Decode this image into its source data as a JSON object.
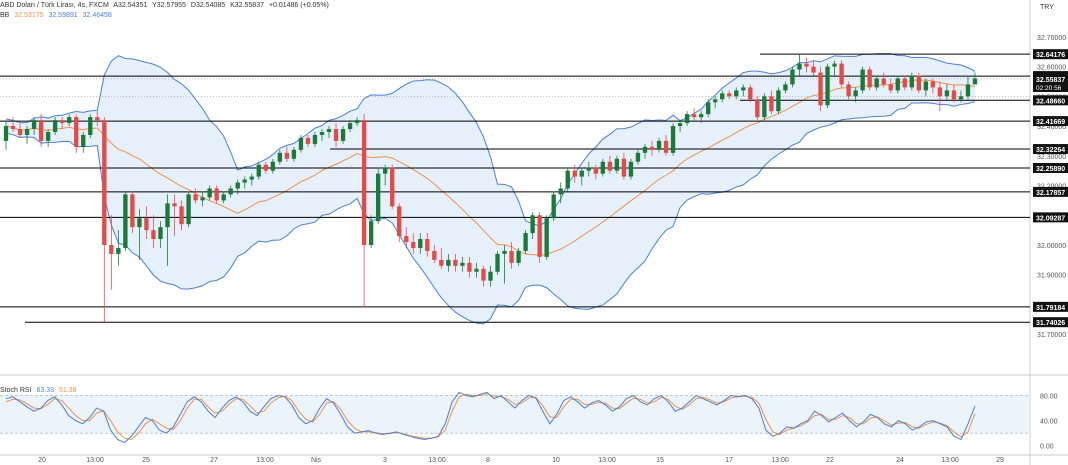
{
  "header": {
    "symbol_line": "ABD Doları / Türk Lirası, 4s, FXCM",
    "ohlc": {
      "o": "A32.54351",
      "h": "Y32.57955",
      "l": "D32.54085",
      "c": "K32.55837",
      "chg": "+0.01486 (+0.05%)"
    },
    "indicator_label": "BB",
    "indicator_values": [
      "32.53175",
      "32.59891",
      "32.46458"
    ],
    "currency": "TRY"
  },
  "chart_data": [
    {
      "type": "candlestick",
      "title": "ABD Doları / Türk Lirası, 4s, FXCM",
      "ylim": [
        31.64,
        32.75
      ],
      "y_ticks": [
        "32.70000",
        "32.60000",
        "32.50000",
        "32.40000",
        "32.30000",
        "32.20000",
        "32.10000",
        "32.00000",
        "31.90000",
        "31.80000",
        "31.70000"
      ],
      "y_tick_values": [
        32.7,
        32.6,
        32.5,
        32.4,
        32.3,
        32.2,
        32.1,
        32.0,
        31.9,
        31.8,
        31.7
      ],
      "x_labels": [
        "20",
        "13:00",
        "25",
        "27",
        "13:00",
        "Nis",
        "3",
        "13:00",
        "8",
        "10",
        "13:00",
        "15",
        "17",
        "13:00",
        "22",
        "24",
        "13:00",
        "29"
      ],
      "horizontal_levels": [
        32.64176,
        32.56802,
        32.4866,
        32.41669,
        32.32264,
        32.2589,
        32.17857,
        32.09287,
        31.79184,
        31.74026
      ],
      "level_labels": [
        "32.64176",
        "32.56802",
        "32.48660",
        "32.41669",
        "32.32264",
        "32.25890",
        "32.17857",
        "32.09287",
        "31.79184",
        "31.74026"
      ],
      "current_price_label": "32.55837",
      "countdown_label": "02:20:56",
      "candles": [
        [
          32.35,
          32.42,
          32.32,
          32.4
        ],
        [
          32.4,
          32.43,
          32.38,
          32.39
        ],
        [
          32.39,
          32.41,
          32.36,
          32.37
        ],
        [
          32.37,
          32.4,
          32.34,
          32.39
        ],
        [
          32.39,
          32.43,
          32.37,
          32.42
        ],
        [
          32.42,
          32.44,
          32.33,
          32.35
        ],
        [
          32.35,
          32.39,
          32.33,
          32.38
        ],
        [
          32.38,
          32.43,
          32.37,
          32.42
        ],
        [
          32.42,
          32.43,
          32.39,
          32.41
        ],
        [
          32.41,
          32.44,
          32.4,
          32.43
        ],
        [
          32.43,
          32.44,
          32.31,
          32.33
        ],
        [
          32.33,
          32.38,
          32.31,
          32.37
        ],
        [
          32.37,
          32.44,
          32.36,
          32.43
        ],
        [
          32.43,
          32.45,
          32.4,
          32.42
        ],
        [
          32.42,
          32.43,
          31.74,
          32.0
        ],
        [
          32.0,
          32.1,
          31.85,
          31.97
        ],
        [
          31.97,
          32.05,
          31.93,
          31.99
        ],
        [
          31.99,
          32.18,
          31.98,
          32.17
        ],
        [
          32.17,
          32.18,
          32.04,
          32.06
        ],
        [
          32.06,
          32.12,
          31.95,
          32.09
        ],
        [
          32.09,
          32.13,
          32.02,
          32.05
        ],
        [
          32.05,
          32.1,
          31.99,
          32.02
        ],
        [
          32.02,
          32.08,
          31.99,
          32.06
        ],
        [
          32.06,
          32.17,
          31.93,
          32.14
        ],
        [
          32.14,
          32.17,
          32.03,
          32.13
        ],
        [
          32.13,
          32.15,
          32.05,
          32.07
        ],
        [
          32.07,
          32.18,
          32.06,
          32.17
        ],
        [
          32.17,
          32.19,
          32.14,
          32.15
        ],
        [
          32.15,
          32.18,
          32.13,
          32.16
        ],
        [
          32.16,
          32.2,
          32.15,
          32.19
        ],
        [
          32.19,
          32.2,
          32.14,
          32.15
        ],
        [
          32.15,
          32.18,
          32.14,
          32.17
        ],
        [
          32.17,
          32.2,
          32.16,
          32.19
        ],
        [
          32.19,
          32.22,
          32.17,
          32.21
        ],
        [
          32.21,
          32.23,
          32.19,
          32.22
        ],
        [
          32.22,
          32.24,
          32.2,
          32.23
        ],
        [
          32.23,
          32.28,
          32.22,
          32.27
        ],
        [
          32.27,
          32.28,
          32.24,
          32.25
        ],
        [
          32.25,
          32.29,
          32.24,
          32.28
        ],
        [
          32.28,
          32.32,
          32.27,
          32.31
        ],
        [
          32.31,
          32.33,
          32.28,
          32.29
        ],
        [
          32.29,
          32.33,
          32.28,
          32.32
        ],
        [
          32.32,
          32.37,
          32.31,
          32.36
        ],
        [
          32.36,
          32.37,
          32.33,
          32.34
        ],
        [
          32.34,
          32.38,
          32.33,
          32.37
        ],
        [
          32.37,
          32.39,
          32.35,
          32.38
        ],
        [
          32.38,
          32.4,
          32.36,
          32.39
        ],
        [
          32.39,
          32.41,
          32.33,
          32.35
        ],
        [
          32.35,
          32.4,
          32.34,
          32.39
        ],
        [
          32.39,
          32.42,
          32.38,
          32.41
        ],
        [
          32.41,
          32.43,
          32.4,
          32.42
        ],
        [
          32.42,
          32.44,
          31.79,
          32.0
        ],
        [
          32.0,
          32.1,
          31.99,
          32.08
        ],
        [
          32.08,
          32.26,
          32.07,
          32.24
        ],
        [
          32.24,
          32.27,
          32.2,
          32.26
        ],
        [
          32.26,
          32.27,
          32.12,
          32.13
        ],
        [
          32.13,
          32.14,
          32.01,
          32.03
        ],
        [
          32.03,
          32.06,
          31.99,
          32.01
        ],
        [
          32.01,
          32.04,
          31.97,
          31.99
        ],
        [
          31.99,
          32.04,
          31.97,
          32.02
        ],
        [
          32.02,
          32.04,
          31.96,
          31.98
        ],
        [
          31.98,
          32.0,
          31.94,
          31.95
        ],
        [
          31.95,
          31.99,
          31.92,
          31.93
        ],
        [
          31.93,
          31.97,
          31.91,
          31.95
        ],
        [
          31.95,
          31.97,
          31.91,
          31.93
        ],
        [
          31.93,
          31.96,
          31.91,
          31.94
        ],
        [
          31.94,
          31.96,
          31.89,
          31.91
        ],
        [
          31.91,
          31.94,
          31.89,
          31.92
        ],
        [
          31.92,
          31.93,
          31.86,
          31.88
        ],
        [
          31.88,
          31.93,
          31.86,
          31.91
        ],
        [
          31.91,
          31.98,
          31.9,
          31.97
        ],
        [
          31.97,
          32.0,
          31.87,
          31.98
        ],
        [
          31.98,
          32.01,
          31.92,
          31.94
        ],
        [
          31.94,
          31.99,
          31.93,
          31.98
        ],
        [
          31.98,
          32.05,
          31.97,
          32.04
        ],
        [
          32.04,
          32.11,
          32.02,
          32.1
        ],
        [
          32.1,
          32.11,
          31.94,
          31.96
        ],
        [
          31.96,
          32.1,
          31.95,
          32.09
        ],
        [
          32.09,
          32.18,
          32.08,
          32.17
        ],
        [
          32.17,
          32.21,
          32.14,
          32.19
        ],
        [
          32.19,
          32.26,
          32.18,
          32.25
        ],
        [
          32.25,
          32.27,
          32.21,
          32.23
        ],
        [
          32.23,
          32.26,
          32.2,
          32.25
        ],
        [
          32.25,
          32.28,
          32.23,
          32.26
        ],
        [
          32.26,
          32.27,
          32.22,
          32.24
        ],
        [
          32.24,
          32.29,
          32.23,
          32.28
        ],
        [
          32.28,
          32.3,
          32.24,
          32.25
        ],
        [
          32.25,
          32.3,
          32.24,
          32.29
        ],
        [
          32.29,
          32.31,
          32.22,
          32.23
        ],
        [
          32.23,
          32.29,
          32.22,
          32.28
        ],
        [
          32.28,
          32.32,
          32.27,
          32.31
        ],
        [
          32.31,
          32.34,
          32.29,
          32.33
        ],
        [
          32.33,
          32.35,
          32.3,
          32.32
        ],
        [
          32.32,
          32.36,
          32.31,
          32.35
        ],
        [
          32.35,
          32.37,
          32.3,
          32.31
        ],
        [
          32.31,
          32.41,
          32.3,
          32.4
        ],
        [
          32.4,
          32.42,
          32.38,
          32.41
        ],
        [
          32.41,
          32.45,
          32.4,
          32.44
        ],
        [
          32.44,
          32.46,
          32.42,
          32.43
        ],
        [
          32.43,
          32.45,
          32.41,
          32.44
        ],
        [
          32.44,
          32.49,
          32.43,
          32.48
        ],
        [
          32.48,
          32.5,
          32.46,
          32.49
        ],
        [
          32.49,
          32.52,
          32.48,
          32.51
        ],
        [
          32.51,
          32.52,
          32.49,
          32.5
        ],
        [
          32.5,
          32.53,
          32.49,
          32.52
        ],
        [
          32.52,
          32.54,
          32.5,
          32.53
        ],
        [
          32.53,
          32.54,
          32.48,
          32.49
        ],
        [
          32.49,
          32.5,
          32.42,
          32.43
        ],
        [
          32.43,
          32.51,
          32.42,
          32.5
        ],
        [
          32.5,
          32.52,
          32.44,
          32.45
        ],
        [
          32.45,
          32.53,
          32.44,
          32.52
        ],
        [
          32.52,
          32.55,
          32.51,
          32.54
        ],
        [
          32.54,
          32.6,
          32.53,
          32.59
        ],
        [
          32.59,
          32.64,
          32.57,
          32.61
        ],
        [
          32.61,
          32.63,
          32.58,
          32.6
        ],
        [
          32.6,
          32.62,
          32.57,
          32.58
        ],
        [
          32.58,
          32.6,
          32.45,
          32.47
        ],
        [
          32.47,
          32.61,
          32.46,
          32.6
        ],
        [
          32.6,
          32.62,
          32.57,
          32.61
        ],
        [
          32.61,
          32.62,
          32.53,
          32.54
        ],
        [
          32.54,
          32.55,
          32.49,
          32.5
        ],
        [
          32.5,
          32.53,
          32.48,
          32.52
        ],
        [
          32.52,
          32.6,
          32.51,
          32.59
        ],
        [
          32.59,
          32.6,
          32.52,
          32.53
        ],
        [
          32.53,
          32.57,
          32.52,
          32.56
        ],
        [
          32.56,
          32.58,
          32.53,
          32.54
        ],
        [
          32.54,
          32.56,
          32.51,
          32.52
        ],
        [
          32.52,
          32.57,
          32.51,
          32.56
        ],
        [
          32.56,
          32.57,
          32.52,
          32.53
        ],
        [
          32.53,
          32.58,
          32.52,
          32.57
        ],
        [
          32.57,
          32.58,
          32.51,
          32.52
        ],
        [
          32.52,
          32.56,
          32.5,
          32.55
        ],
        [
          32.55,
          32.56,
          32.51,
          32.53
        ],
        [
          32.53,
          32.55,
          32.45,
          32.5
        ],
        [
          32.5,
          32.54,
          32.49,
          32.52
        ],
        [
          32.52,
          32.54,
          32.48,
          32.49
        ],
        [
          32.49,
          32.52,
          32.48,
          32.5
        ],
        [
          32.5,
          32.57,
          32.49,
          32.54
        ],
        [
          32.54,
          32.58,
          32.54,
          32.56
        ]
      ]
    },
    {
      "type": "line",
      "title": "Stoch RSI",
      "legend_values": [
        "63.33",
        "51.38"
      ],
      "series": [
        {
          "name": "%K",
          "values": [
            75,
            78,
            70,
            62,
            55,
            60,
            72,
            78,
            65,
            48,
            40,
            35,
            45,
            60,
            55,
            25,
            10,
            5,
            15,
            30,
            45,
            40,
            25,
            20,
            30,
            50,
            70,
            78,
            70,
            55,
            45,
            60,
            72,
            78,
            70,
            55,
            48,
            62,
            75,
            80,
            78,
            65,
            45,
            35,
            40,
            60,
            75,
            68,
            50,
            30,
            20,
            22,
            24,
            20,
            18,
            20,
            22,
            18,
            15,
            12,
            10,
            12,
            15,
            35,
            70,
            85,
            80,
            78,
            82,
            85,
            75,
            80,
            70,
            60,
            72,
            80,
            76,
            55,
            35,
            50,
            72,
            78,
            70,
            60,
            68,
            72,
            65,
            55,
            62,
            75,
            80,
            70,
            65,
            75,
            80,
            70,
            55,
            60,
            70,
            80,
            75,
            70,
            65,
            72,
            80,
            78,
            80,
            75,
            60,
            25,
            15,
            20,
            30,
            28,
            35,
            40,
            55,
            48,
            38,
            45,
            52,
            40,
            30,
            38,
            50,
            45,
            35,
            30,
            40,
            35,
            25,
            30,
            38,
            40,
            35,
            30,
            15,
            10,
            35,
            63.33
          ]
        },
        {
          "name": "%D",
          "values": [
            70,
            74,
            73,
            67,
            60,
            59,
            66,
            75,
            72,
            60,
            48,
            40,
            40,
            52,
            56,
            40,
            22,
            12,
            10,
            20,
            35,
            42,
            35,
            28,
            26,
            40,
            60,
            74,
            74,
            62,
            52,
            55,
            66,
            75,
            74,
            64,
            52,
            55,
            68,
            76,
            79,
            72,
            55,
            42,
            38,
            50,
            68,
            70,
            58,
            40,
            28,
            22,
            22,
            21,
            19,
            19,
            21,
            19,
            16,
            14,
            12,
            12,
            14,
            25,
            55,
            78,
            82,
            80,
            80,
            83,
            79,
            78,
            74,
            66,
            68,
            76,
            77,
            64,
            46,
            45,
            62,
            74,
            74,
            66,
            66,
            69,
            68,
            60,
            59,
            68,
            76,
            74,
            68,
            70,
            77,
            74,
            63,
            58,
            65,
            75,
            77,
            73,
            68,
            70,
            76,
            78,
            79,
            77,
            68,
            42,
            22,
            18,
            25,
            28,
            32,
            38,
            48,
            50,
            42,
            42,
            48,
            45,
            35,
            35,
            44,
            46,
            40,
            33,
            36,
            37,
            30,
            28,
            34,
            38,
            36,
            32,
            22,
            14,
            22,
            51.38
          ]
        }
      ],
      "y_ticks": [
        "80.00",
        "40.00",
        "0.00"
      ],
      "y_tick_values": [
        80,
        40,
        0
      ],
      "band_lines": [
        80,
        20
      ],
      "ylim": [
        -10,
        100
      ]
    }
  ],
  "colors": {
    "up": "#1b7a3a",
    "down": "#e34a4a",
    "bb_line": "#4a7fd4",
    "bb_fill": "#e6f0fb",
    "basis": "#f0904a",
    "k": "#4a7fd4",
    "d": "#f0904a",
    "level": "#000000",
    "rsi_band": "#dbeaf7"
  }
}
